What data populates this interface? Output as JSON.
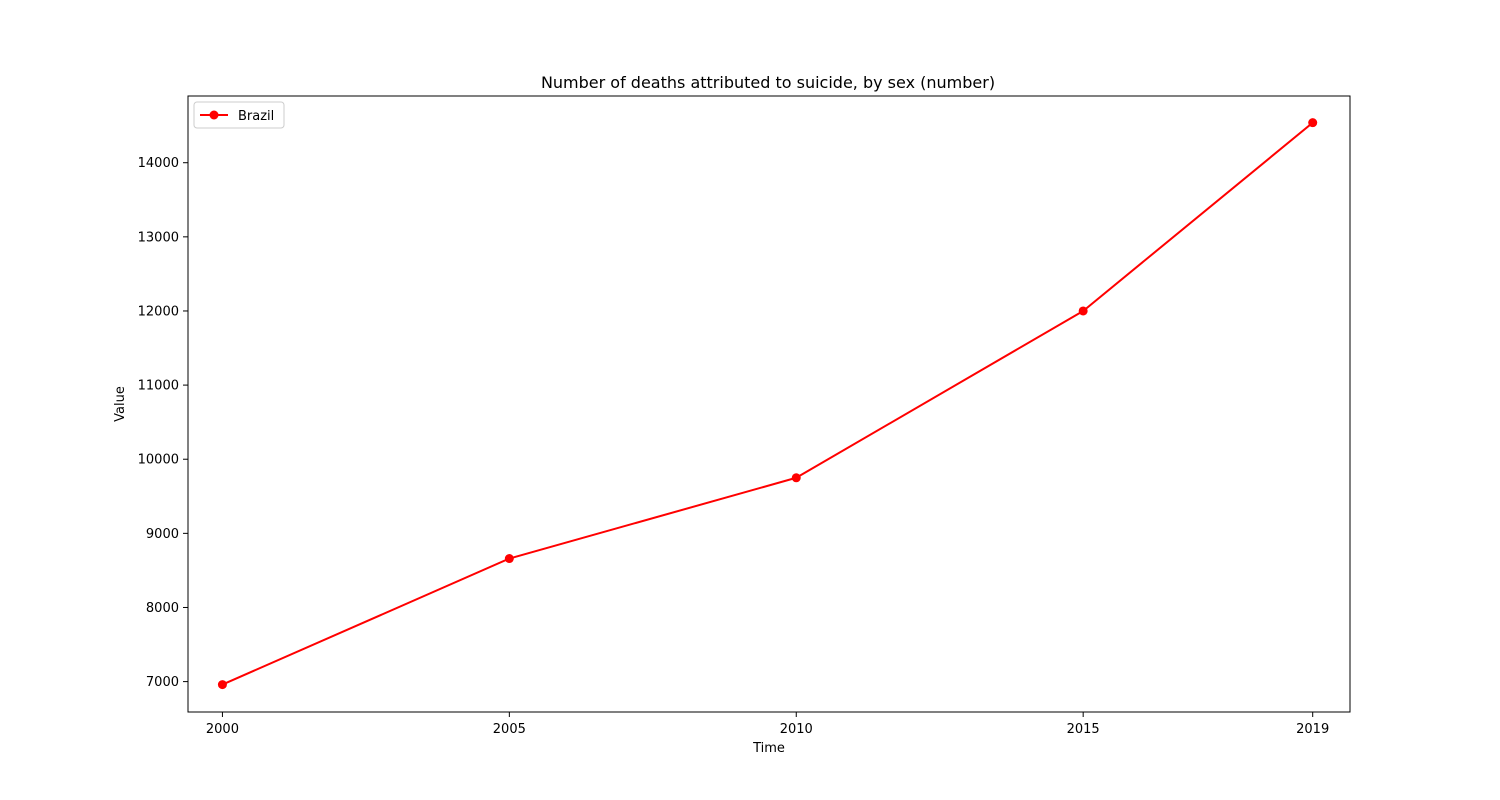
{
  "chart_data": {
    "type": "line",
    "title": "Number of deaths attributed to suicide, by sex (number)",
    "xlabel": "Time",
    "ylabel": "Value",
    "x": [
      2000,
      2005,
      2010,
      2015,
      2019
    ],
    "xticks": [
      "2000",
      "2005",
      "2010",
      "2015",
      "2019"
    ],
    "yticks": [
      7000,
      8000,
      9000,
      10000,
      11000,
      12000,
      13000,
      14000
    ],
    "xlim": [
      1999.4,
      2019.65
    ],
    "ylim": [
      6590,
      14900
    ],
    "grid": false,
    "legend_position": "top-left",
    "series": [
      {
        "name": "Brazil",
        "color": "#ff0000",
        "marker": "circle",
        "values": [
          6960,
          8660,
          9750,
          12000,
          14540
        ]
      }
    ]
  }
}
